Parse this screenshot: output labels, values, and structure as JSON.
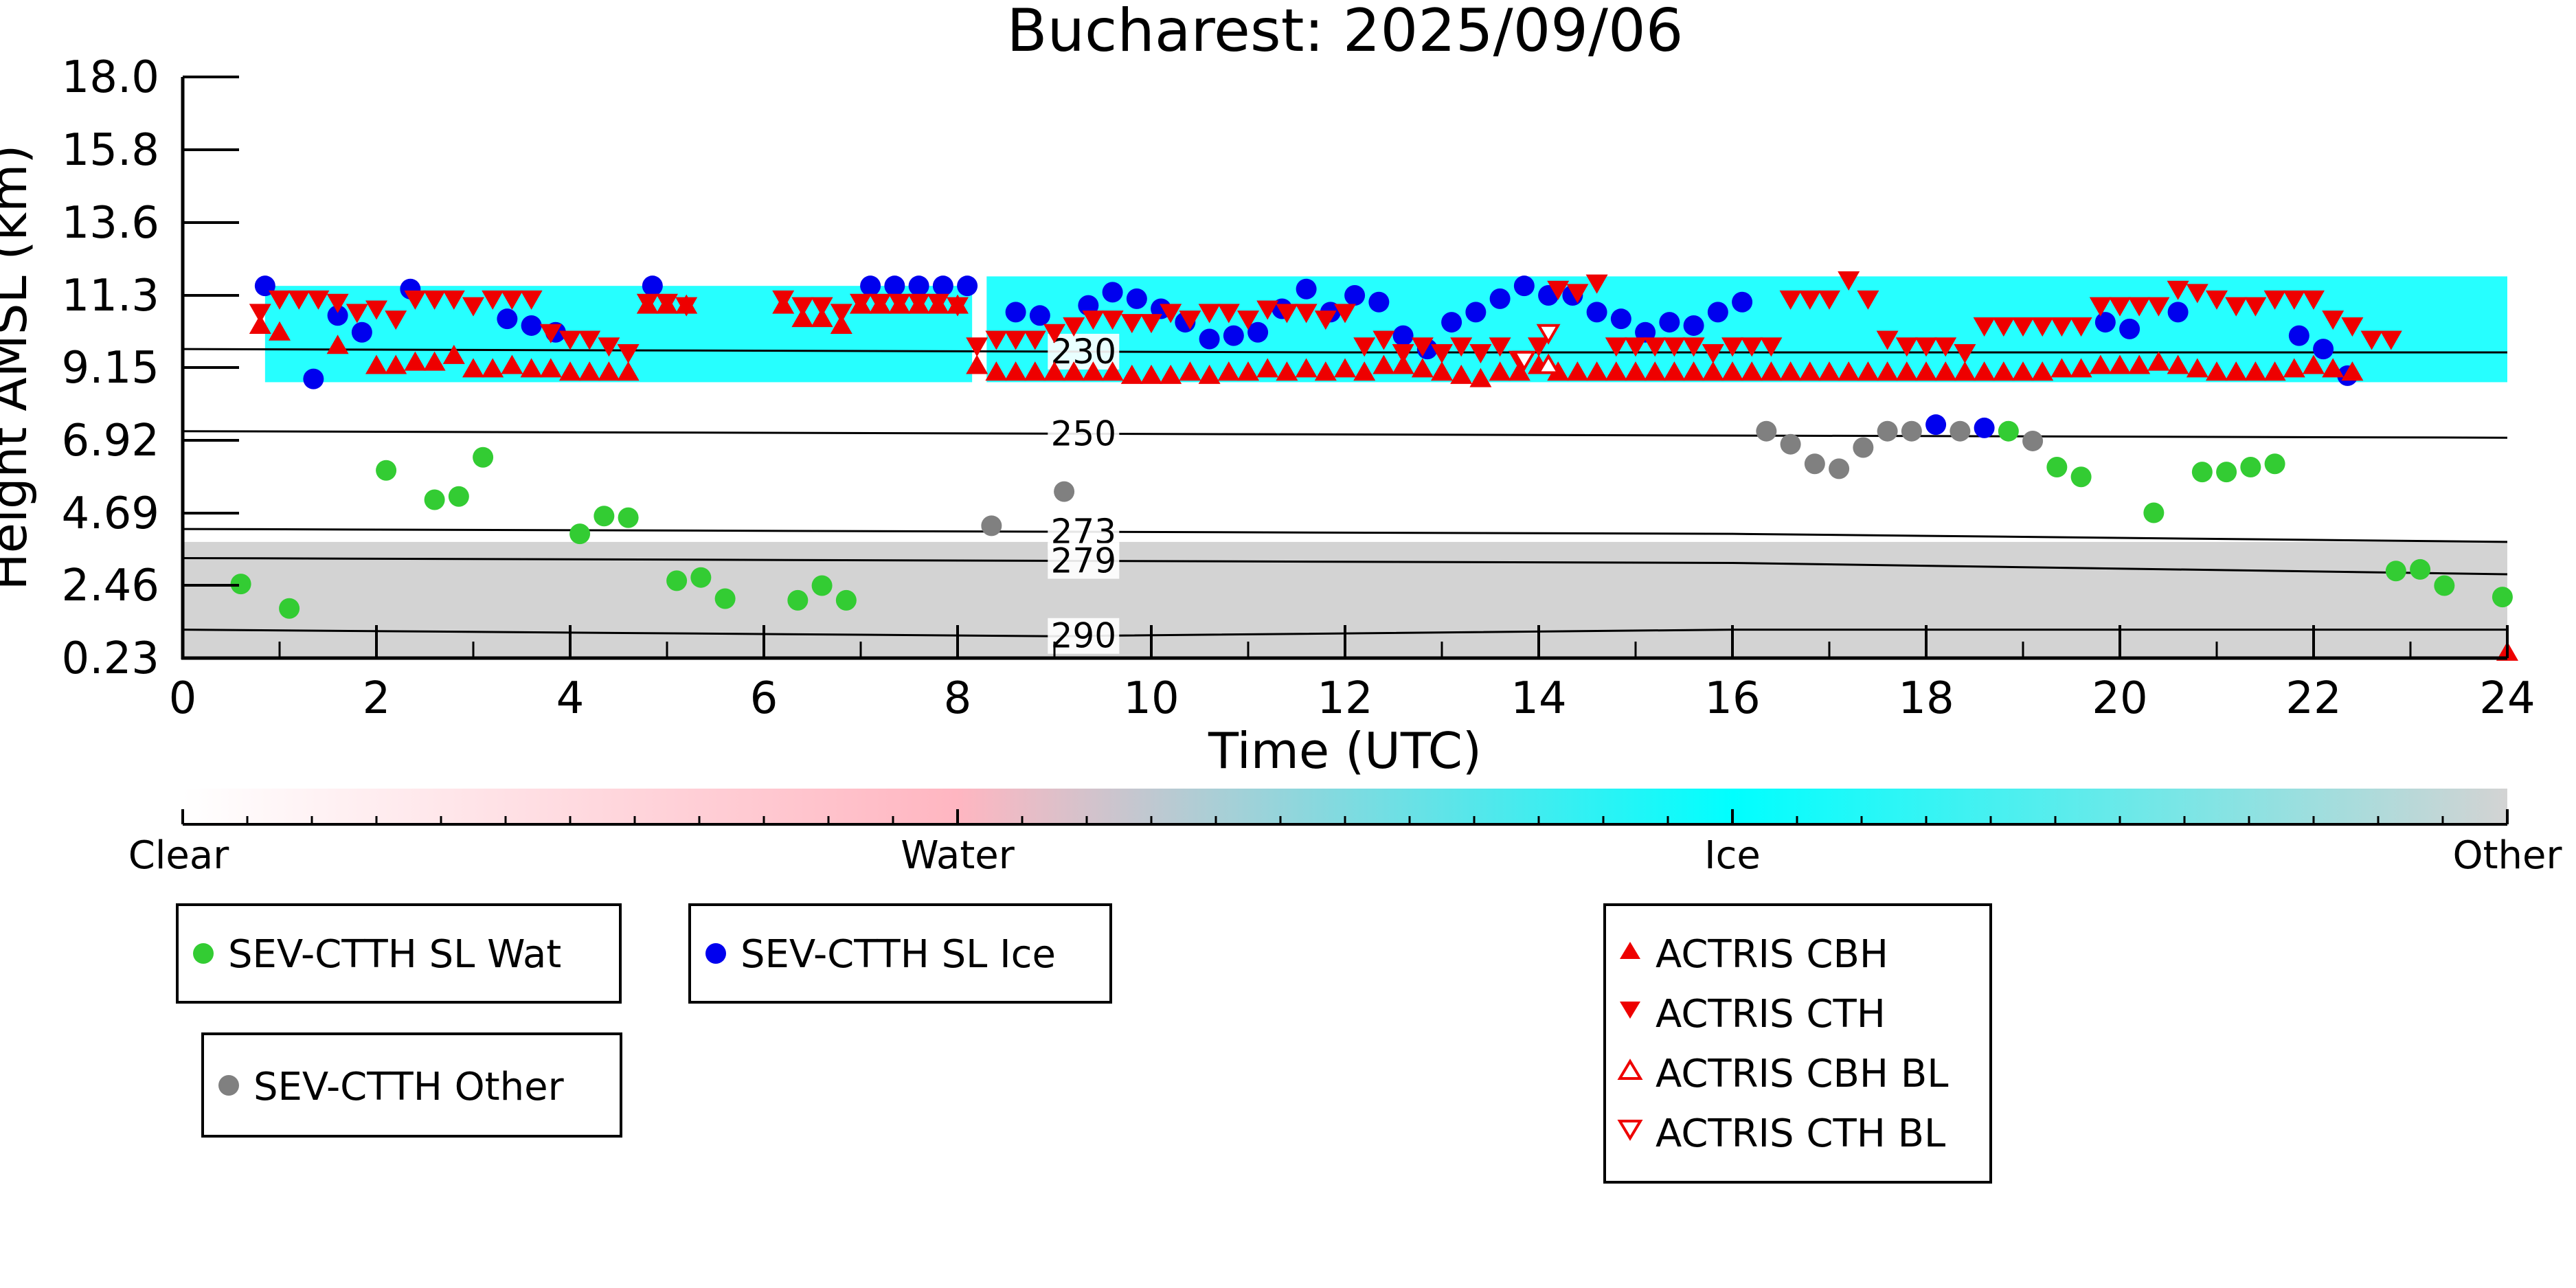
{
  "chart_data": {
    "type": "scatter",
    "title": "Bucharest: 2025/09/06",
    "xlabel": "Time (UTC)",
    "ylabel": "Height AMSL (km)",
    "xlim": [
      0,
      24
    ],
    "ylim": [
      0.23,
      18.0
    ],
    "x_ticks": [
      "0",
      "2",
      "4",
      "6",
      "8",
      "10",
      "12",
      "14",
      "16",
      "18",
      "20",
      "22",
      "24"
    ],
    "y_ticks": [
      "0.23",
      "2.46",
      "4.69",
      "6.92",
      "9.15",
      "11.3",
      "13.6",
      "15.8",
      "18.0"
    ],
    "grid": false,
    "background_layers": [
      {
        "class": "Ice",
        "color": "#00ffff",
        "from_h": 0.85,
        "to_h": 8.15,
        "bottom_km": 8.7,
        "top_km": 11.6
      },
      {
        "class": "Ice",
        "color": "#00ffff",
        "from_h": 8.3,
        "to_h": 24.0,
        "bottom_km": 8.7,
        "top_km": 11.9
      },
      {
        "class": "Other",
        "color": "#d3d3d3",
        "from_h": 0.0,
        "to_h": 24.0,
        "bottom_km": 0.23,
        "top_km": 3.8
      }
    ],
    "contours": [
      {
        "label": "230",
        "x": [
          0,
          12,
          24
        ],
        "y": [
          9.7,
          9.6,
          9.6
        ]
      },
      {
        "label": "250",
        "x": [
          0,
          24
        ],
        "y": [
          7.2,
          7.0
        ]
      },
      {
        "label": "273",
        "x": [
          0,
          16,
          24
        ],
        "y": [
          4.2,
          4.05,
          3.8
        ]
      },
      {
        "label": "279",
        "x": [
          0,
          16,
          24
        ],
        "y": [
          3.3,
          3.15,
          2.8
        ]
      },
      {
        "label": "290",
        "x": [
          0,
          9,
          16,
          24
        ],
        "y": [
          1.1,
          0.9,
          1.1,
          1.1
        ]
      }
    ],
    "series": [
      {
        "name": "SEV-CTTH SL Wat",
        "color": "#33cc33",
        "marker": "circle",
        "x": [
          0.6,
          1.1,
          2.1,
          2.6,
          2.85,
          3.1,
          4.1,
          4.35,
          4.6,
          5.1,
          5.35,
          5.6,
          6.35,
          6.6,
          6.85,
          18.85,
          19.35,
          19.6,
          20.35,
          20.85,
          21.1,
          21.35,
          21.6,
          22.85,
          23.1,
          23.35,
          23.95
        ],
        "y": [
          2.5,
          1.75,
          6.0,
          5.1,
          5.2,
          6.4,
          4.05,
          4.6,
          4.55,
          2.6,
          2.7,
          2.05,
          2.0,
          2.45,
          2.0,
          7.2,
          6.1,
          5.8,
          4.7,
          5.95,
          5.95,
          6.1,
          6.2,
          2.9,
          2.95,
          2.45,
          2.1
        ]
      },
      {
        "name": "SEV-CTTH SL Ice",
        "color": "#0000ee",
        "marker": "circle",
        "x": [
          0.85,
          1.35,
          1.6,
          1.85,
          2.35,
          3.35,
          3.6,
          3.85,
          4.85,
          7.1,
          7.35,
          7.6,
          7.85,
          8.1,
          8.6,
          8.85,
          9.35,
          9.6,
          9.85,
          10.1,
          10.35,
          10.6,
          10.85,
          11.1,
          11.35,
          11.6,
          11.85,
          12.1,
          12.35,
          12.6,
          12.85,
          13.1,
          13.35,
          13.6,
          13.85,
          14.1,
          14.35,
          14.6,
          14.85,
          15.1,
          15.35,
          15.6,
          15.85,
          16.1,
          18.1,
          18.6,
          19.85,
          20.1,
          20.6,
          21.85,
          22.1,
          22.35
        ],
        "y": [
          11.6,
          8.8,
          10.7,
          10.2,
          11.5,
          10.6,
          10.4,
          10.2,
          11.6,
          11.6,
          11.6,
          11.6,
          11.6,
          11.6,
          10.8,
          10.7,
          11.0,
          11.4,
          11.2,
          10.9,
          10.5,
          10.0,
          10.1,
          10.2,
          10.9,
          11.5,
          10.8,
          11.3,
          11.1,
          10.1,
          9.7,
          10.5,
          10.8,
          11.2,
          11.6,
          11.3,
          11.3,
          10.8,
          10.6,
          10.2,
          10.5,
          10.4,
          10.8,
          11.1,
          7.4,
          7.3,
          10.5,
          10.3,
          10.8,
          10.1,
          9.7,
          8.9
        ]
      },
      {
        "name": "SEV-CTTH Other",
        "color": "#808080",
        "marker": "circle",
        "x": [
          8.35,
          9.1,
          16.35,
          16.6,
          16.85,
          17.1,
          17.35,
          17.6,
          17.85,
          18.35,
          19.1
        ],
        "y": [
          4.3,
          5.35,
          7.2,
          6.8,
          6.2,
          6.05,
          6.7,
          7.2,
          7.2,
          7.2,
          6.9
        ]
      },
      {
        "name": "ACTRIS CBH",
        "color": "#ee0000",
        "marker": "triangle-up",
        "x": [
          0.4,
          0.6,
          0.8,
          1.0,
          1.2,
          1.4,
          1.6,
          1.8,
          2.0,
          2.2,
          2.4,
          2.6,
          2.8,
          3.0,
          3.2,
          3.4,
          3.6,
          3.8,
          4.0,
          4.2,
          4.4,
          4.6,
          4.8,
          5.0,
          5.2,
          5.4,
          5.6,
          5.8,
          6.0,
          6.2,
          6.4,
          6.6,
          6.8,
          7.0,
          7.2,
          7.4,
          7.6,
          7.8,
          8.0,
          8.2,
          8.4,
          8.6,
          8.8,
          9.0,
          9.2,
          9.4,
          9.6,
          9.8,
          10.0,
          10.2,
          10.4,
          10.6,
          10.8,
          11.0,
          11.2,
          11.4,
          11.6,
          11.8,
          12.0,
          12.2,
          12.4,
          12.6,
          12.8,
          13.0,
          13.2,
          13.4,
          13.6,
          13.8,
          14.0,
          14.2,
          14.4,
          14.6,
          14.8,
          15.0,
          15.2,
          15.4,
          15.6,
          15.8,
          16.0,
          16.2,
          16.4,
          16.6,
          16.8,
          17.0,
          17.2,
          17.4,
          17.6,
          17.8,
          18.0,
          18.2,
          18.4,
          18.6,
          18.8,
          19.0,
          19.2,
          19.4,
          19.6,
          19.8,
          20.0,
          20.2,
          20.4,
          20.6,
          20.8,
          21.0,
          21.2,
          21.4,
          21.6,
          21.8,
          22.0,
          22.2,
          22.4,
          22.6,
          22.8,
          23.0,
          23.2,
          23.4,
          23.6,
          23.8,
          24.0
        ],
        "y": [
          null,
          null,
          10.4,
          10.2,
          null,
          null,
          9.8,
          null,
          9.2,
          9.2,
          9.3,
          9.3,
          9.5,
          9.1,
          9.1,
          9.2,
          9.1,
          9.1,
          9.0,
          9.0,
          9.0,
          9.0,
          11.0,
          11.0,
          11.0,
          null,
          null,
          null,
          null,
          11.0,
          10.6,
          10.6,
          10.4,
          11.0,
          11.0,
          11.0,
          11.0,
          11.0,
          11.0,
          9.2,
          9.0,
          9.0,
          9.0,
          9.0,
          9.0,
          9.0,
          9.0,
          8.9,
          8.9,
          8.9,
          9.0,
          8.9,
          9.0,
          9.0,
          9.1,
          9.0,
          9.1,
          9.0,
          9.1,
          9.0,
          9.2,
          9.2,
          9.1,
          9.0,
          8.9,
          8.8,
          9.0,
          9.0,
          9.2,
          9.0,
          9.0,
          9.0,
          9.0,
          9.0,
          9.0,
          9.0,
          9.0,
          9.0,
          9.0,
          9.0,
          9.0,
          9.0,
          9.0,
          9.0,
          9.0,
          9.0,
          9.0,
          9.0,
          9.0,
          9.0,
          9.0,
          9.0,
          9.0,
          9.0,
          9.0,
          9.1,
          9.1,
          9.2,
          9.2,
          9.2,
          9.3,
          9.2,
          9.1,
          9.0,
          9.0,
          9.0,
          9.0,
          9.1,
          9.2,
          9.1,
          9.0,
          null,
          null,
          null,
          null,
          null,
          null,
          null,
          0.4
        ]
      },
      {
        "name": "ACTRIS CTH",
        "color": "#ee0000",
        "marker": "triangle-down",
        "x": [
          0.4,
          0.6,
          0.8,
          1.0,
          1.2,
          1.4,
          1.6,
          1.8,
          2.0,
          2.2,
          2.4,
          2.6,
          2.8,
          3.0,
          3.2,
          3.4,
          3.6,
          3.8,
          4.0,
          4.2,
          4.4,
          4.6,
          4.8,
          5.0,
          5.2,
          5.4,
          5.6,
          5.8,
          6.0,
          6.2,
          6.4,
          6.6,
          6.8,
          7.0,
          7.2,
          7.4,
          7.6,
          7.8,
          8.0,
          8.2,
          8.4,
          8.6,
          8.8,
          9.0,
          9.2,
          9.4,
          9.6,
          9.8,
          10.0,
          10.2,
          10.4,
          10.6,
          10.8,
          11.0,
          11.2,
          11.4,
          11.6,
          11.8,
          12.0,
          12.2,
          12.4,
          12.6,
          12.8,
          13.0,
          13.2,
          13.4,
          13.6,
          13.8,
          14.0,
          14.2,
          14.4,
          14.6,
          14.8,
          15.0,
          15.2,
          15.4,
          15.6,
          15.8,
          16.0,
          16.2,
          16.4,
          16.6,
          16.8,
          17.0,
          17.2,
          17.4,
          17.6,
          17.8,
          18.0,
          18.2,
          18.4,
          18.6,
          18.8,
          19.0,
          19.2,
          19.4,
          19.6,
          19.8,
          20.0,
          20.2,
          20.4,
          20.6,
          20.8,
          21.0,
          21.2,
          21.4,
          21.6,
          21.8,
          22.0,
          22.2,
          22.4,
          22.6,
          22.8,
          23.0,
          23.2,
          23.4,
          23.6,
          23.8,
          24.0
        ],
        "y": [
          null,
          null,
          10.8,
          11.2,
          11.2,
          11.2,
          11.1,
          10.8,
          10.9,
          10.6,
          11.2,
          11.2,
          11.2,
          11.0,
          11.2,
          11.2,
          11.2,
          10.2,
          10.0,
          10.0,
          9.8,
          9.6,
          11.1,
          11.1,
          11.0,
          null,
          null,
          null,
          null,
          11.2,
          11.0,
          11.0,
          10.8,
          11.1,
          11.1,
          11.1,
          11.1,
          11.1,
          11.0,
          9.8,
          10.0,
          10.0,
          10.0,
          10.2,
          10.4,
          10.6,
          10.6,
          10.5,
          10.5,
          10.8,
          10.6,
          10.8,
          10.8,
          10.6,
          10.9,
          10.8,
          10.8,
          10.6,
          10.8,
          9.8,
          10.0,
          9.6,
          9.8,
          9.6,
          9.8,
          9.6,
          9.8,
          9.4,
          9.8,
          11.5,
          11.4,
          11.7,
          9.8,
          9.8,
          9.8,
          9.8,
          9.8,
          9.6,
          9.8,
          9.8,
          9.8,
          11.2,
          11.2,
          11.2,
          11.8,
          11.2,
          10.0,
          9.8,
          9.8,
          9.8,
          9.6,
          10.4,
          10.4,
          10.4,
          10.4,
          10.4,
          10.4,
          11.0,
          11.0,
          11.0,
          11.0,
          11.5,
          11.4,
          11.2,
          11.0,
          11.0,
          11.2,
          11.2,
          11.2,
          10.6,
          10.4,
          10.0,
          10.0,
          null,
          null,
          null,
          null,
          null,
          null
        ]
      },
      {
        "name": "ACTRIS CBH BL",
        "color": "#ee0000",
        "marker": "triangle-up-open",
        "x": [
          14.1
        ],
        "y": [
          9.2
        ]
      },
      {
        "name": "ACTRIS CTH BL",
        "color": "#ee0000",
        "marker": "triangle-down-open",
        "x": [
          13.85,
          14.1
        ],
        "y": [
          9.4,
          10.2
        ]
      }
    ],
    "colorbar": {
      "labels": [
        "Clear",
        "Water",
        "Ice",
        "Other"
      ],
      "colors": [
        "#ffffff",
        "#ffb6c1",
        "#00ffff",
        "#d3d3d3"
      ]
    },
    "legend_placement": "below",
    "legends": [
      {
        "entries": [
          "SEV-CTTH SL Wat"
        ]
      },
      {
        "entries": [
          "SEV-CTTH SL Ice"
        ]
      },
      {
        "entries": [
          "SEV-CTTH Other"
        ]
      },
      {
        "entries": [
          "ACTRIS CBH",
          "ACTRIS CTH",
          "ACTRIS CBH BL",
          "ACTRIS CTH BL"
        ]
      }
    ]
  }
}
